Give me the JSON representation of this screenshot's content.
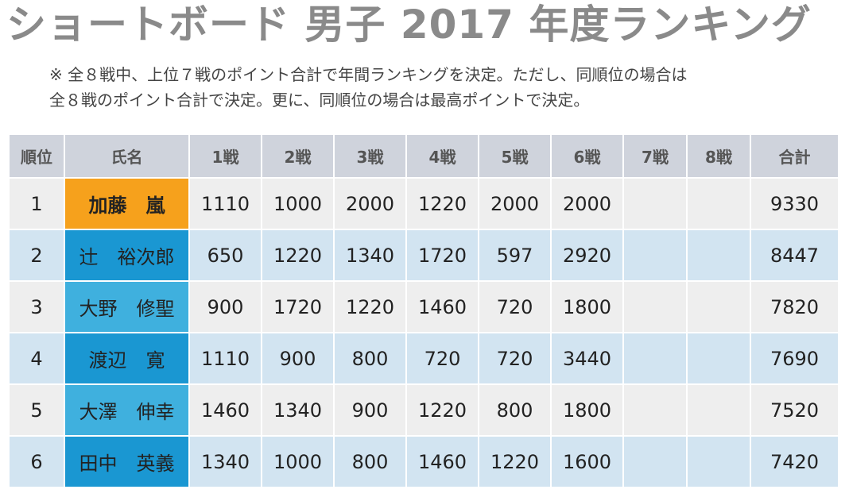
{
  "page_title": "ショートボード 男子 2017 年度ランキング",
  "note": {
    "line1": "※ 全８戦中、上位７戦のポイント合計で年間ランキングを決定。ただし、同順位の場合は",
    "line2": "全８戦のポイント合計で決定。更に、同順位の場合は最高ポイントで決定。"
  },
  "table": {
    "headers": [
      "順位",
      "氏名",
      "1戦",
      "2戦",
      "3戦",
      "4戦",
      "5戦",
      "6戦",
      "7戦",
      "8戦",
      "合計"
    ],
    "rows": [
      {
        "rank": "1",
        "name": "加藤　嵐",
        "scores": [
          "1110",
          "1000",
          "2000",
          "1220",
          "2000",
          "2000",
          "",
          ""
        ],
        "total": "9330",
        "name_color": "#f6a11c"
      },
      {
        "rank": "2",
        "name": "辻　裕次郎",
        "scores": [
          "650",
          "1220",
          "1340",
          "1720",
          "597",
          "2920",
          "",
          ""
        ],
        "total": "8447",
        "name_color": "#1a97d2"
      },
      {
        "rank": "3",
        "name": "大野　修聖",
        "scores": [
          "900",
          "1720",
          "1220",
          "1460",
          "720",
          "1800",
          "",
          ""
        ],
        "total": "7820",
        "name_color": "#3fb0de"
      },
      {
        "rank": "4",
        "name": "渡辺　寛",
        "scores": [
          "1110",
          "900",
          "800",
          "720",
          "720",
          "3440",
          "",
          ""
        ],
        "total": "7690",
        "name_color": "#1a97d2"
      },
      {
        "rank": "5",
        "name": "大澤　伸幸",
        "scores": [
          "1460",
          "1340",
          "900",
          "1220",
          "800",
          "1800",
          "",
          ""
        ],
        "total": "7520",
        "name_color": "#3fb0de"
      },
      {
        "rank": "6",
        "name": "田中　英義",
        "scores": [
          "1340",
          "1000",
          "800",
          "1460",
          "1220",
          "1600",
          "",
          ""
        ],
        "total": "7420",
        "name_color": "#1a97d2"
      }
    ]
  },
  "colors": {
    "header_bg": "#cfd3dc",
    "row_odd_bg": "#eeeeee",
    "row_even_bg": "#d2e4f1",
    "first_place": "#f6a11c"
  }
}
